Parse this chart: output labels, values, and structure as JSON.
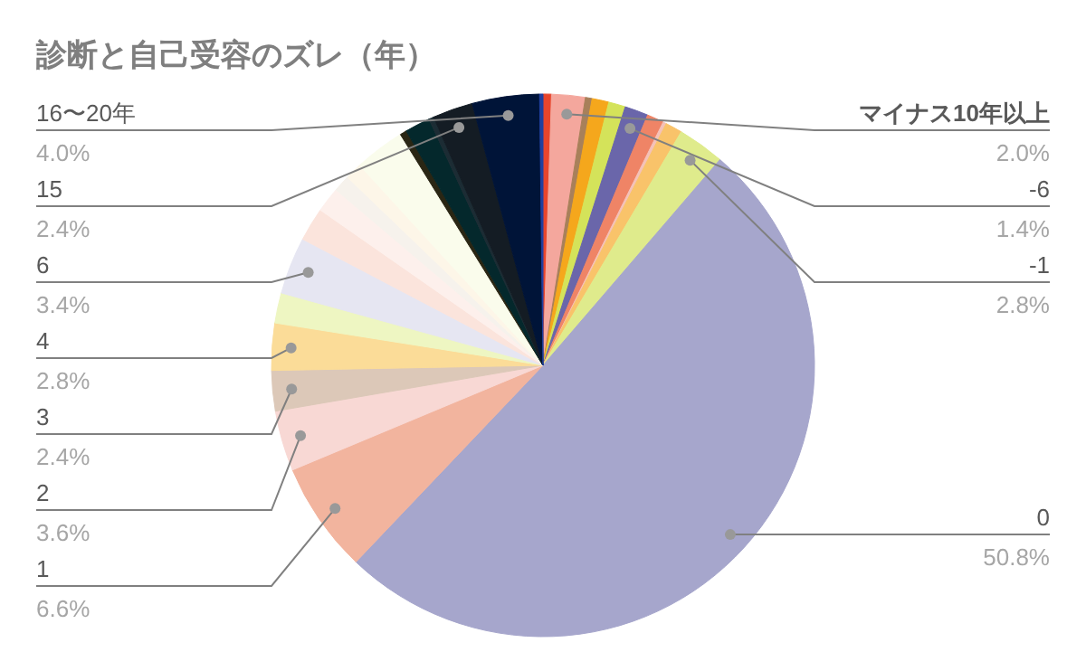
{
  "chart_data": {
    "type": "pie",
    "title": "診断と自己受容のズレ（年）",
    "categories": [
      null,
      "マイナス10年以上",
      null,
      null,
      null,
      "-6",
      null,
      null,
      null,
      "-1",
      "0",
      "1",
      "2",
      "3",
      "4",
      null,
      "6",
      null,
      null,
      null,
      null,
      null,
      null,
      null,
      null,
      "15",
      "16〜20年",
      null
    ],
    "values": [
      0.5,
      2.0,
      0.4,
      1.0,
      1.0,
      1.4,
      1.0,
      0.2,
      1.0,
      2.8,
      50.8,
      6.6,
      3.6,
      2.4,
      2.8,
      1.8,
      3.4,
      2.0,
      1.5,
      1.0,
      1.0,
      3.0,
      0.4,
      1.5,
      0.3,
      2.4,
      4.0,
      0.2
    ],
    "value_labels": [
      null,
      "2.0%",
      null,
      null,
      null,
      "1.4%",
      null,
      null,
      null,
      "2.8%",
      "50.8%",
      "6.6%",
      "3.6%",
      "2.4%",
      "2.8%",
      null,
      "3.4%",
      null,
      null,
      null,
      null,
      null,
      null,
      null,
      null,
      "2.4%",
      "4.0%",
      null
    ],
    "colors": [
      "#e8452c",
      "#f4a79d",
      "#a8805a",
      "#f5a71c",
      "#d4e35a",
      "#6a66aa",
      "#ef8466",
      "#f4c2b8",
      "#f9c36a",
      "#dfeb8c",
      "#a6a6cc",
      "#f2b49e",
      "#f8d8d4",
      "#dcc8b8",
      "#fbdc98",
      "#eef6c2",
      "#e6e6f2",
      "#fbe4dc",
      "#fdf0ec",
      "#f6f2ec",
      "#fdf6e8",
      "#fafcec",
      "#2a2614",
      "#04282c",
      "#1c2c34",
      "#141c24",
      "#001438",
      "#2040a0"
    ]
  }
}
